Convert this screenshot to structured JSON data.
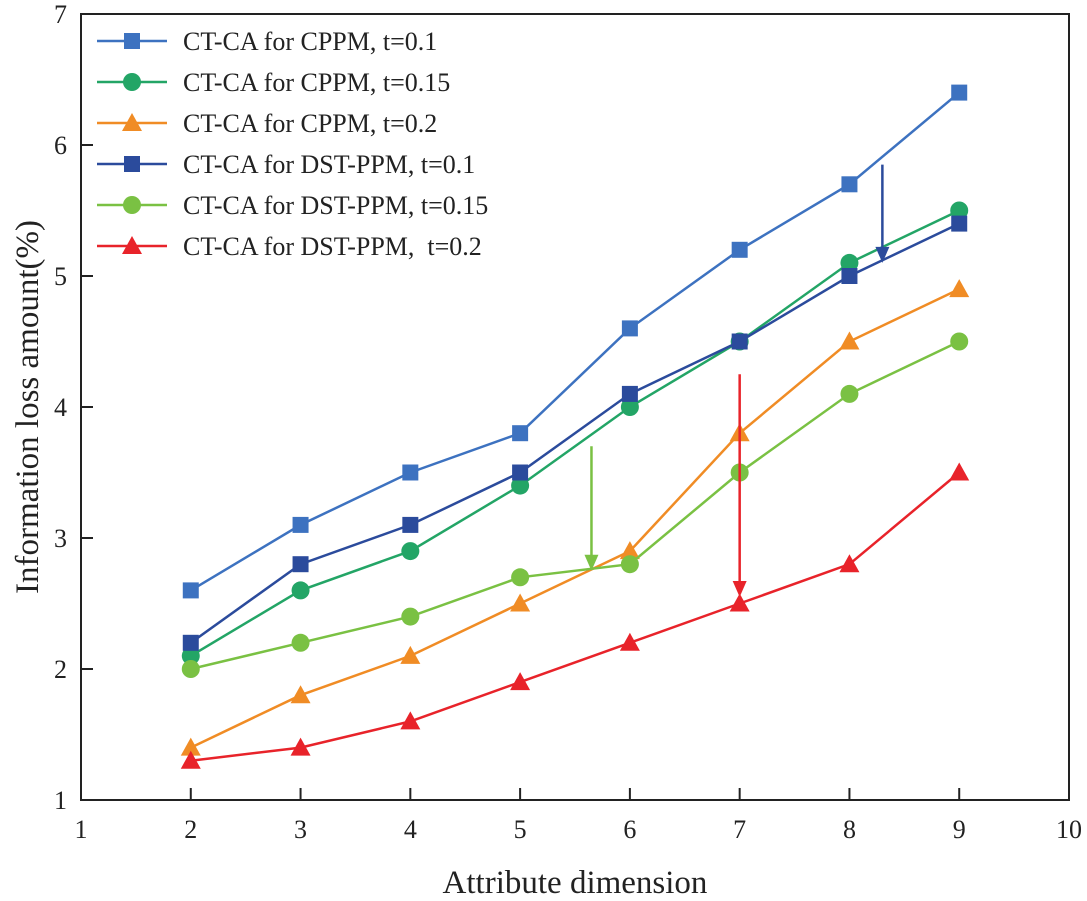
{
  "chart_data": {
    "type": "line",
    "xlabel": "Attribute dimension",
    "ylabel": "Information loss amount(%)",
    "xlim": [
      1,
      10
    ],
    "ylim": [
      1,
      7
    ],
    "xticks": [
      "1",
      "2",
      "3",
      "4",
      "5",
      "6",
      "7",
      "8",
      "9",
      "10"
    ],
    "yticks": [
      "1",
      "2",
      "3",
      "4",
      "5",
      "6",
      "7"
    ],
    "x": [
      2,
      3,
      4,
      5,
      6,
      7,
      8,
      9
    ],
    "legend_position": "top-left",
    "series": [
      {
        "name": "CT-CA for CPPM, t=0.1",
        "marker": "square",
        "color": "#3d72c0",
        "values": [
          2.6,
          3.1,
          3.5,
          3.8,
          4.6,
          5.2,
          5.7,
          6.4
        ]
      },
      {
        "name": "CT-CA for CPPM, t=0.15",
        "marker": "circle",
        "color": "#23a566",
        "values": [
          2.1,
          2.6,
          2.9,
          3.4,
          4.0,
          4.5,
          5.1,
          5.5
        ]
      },
      {
        "name": "CT-CA for CPPM, t=0.2",
        "marker": "triangle",
        "color": "#f08c25",
        "values": [
          1.4,
          1.8,
          2.1,
          2.5,
          2.9,
          3.8,
          4.5,
          4.9
        ]
      },
      {
        "name": "CT-CA for DST-PPM, t=0.1",
        "marker": "square",
        "color": "#2b4b9c",
        "values": [
          2.2,
          2.8,
          3.1,
          3.5,
          4.1,
          4.5,
          5.0,
          5.4
        ]
      },
      {
        "name": "CT-CA for DST-PPM, t=0.15",
        "marker": "circle",
        "color": "#7ac143",
        "values": [
          2.0,
          2.2,
          2.4,
          2.7,
          2.8,
          3.5,
          4.1,
          4.5
        ]
      },
      {
        "name": "CT-CA for DST-PPM,  t=0.2",
        "marker": "triangle",
        "color": "#e8232a",
        "values": [
          1.3,
          1.4,
          1.6,
          1.9,
          2.2,
          2.5,
          2.8,
          3.5
        ]
      }
    ],
    "annotations": [
      {
        "type": "arrow",
        "color": "#2b4b9c",
        "from": [
          8.3,
          5.85
        ],
        "to": [
          8.3,
          5.1
        ]
      },
      {
        "type": "arrow",
        "color": "#7ac143",
        "from": [
          5.65,
          3.7
        ],
        "to": [
          5.65,
          2.75
        ]
      },
      {
        "type": "arrow",
        "color": "#e8232a",
        "from": [
          7.0,
          4.25
        ],
        "to": [
          7.0,
          2.55
        ]
      }
    ]
  }
}
